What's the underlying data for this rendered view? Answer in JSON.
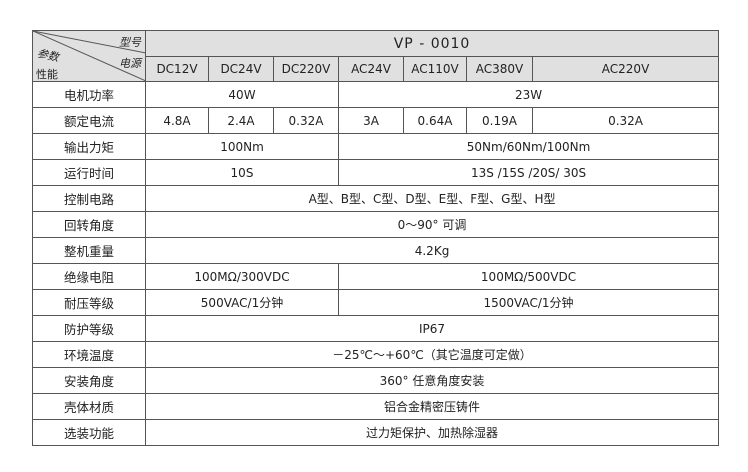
{
  "corner": {
    "model_label": "型号",
    "param_label": "参数",
    "power_label": "电源",
    "perf_label": "性能"
  },
  "model": "VP - 0010",
  "power_sources": [
    "DC12V",
    "DC24V",
    "DC220V",
    "AC24V",
    "AC110V",
    "AC380V",
    "AC220V"
  ],
  "rows": [
    {
      "label": "电机功率",
      "dc": "40W",
      "ac": "23W"
    },
    {
      "label": "额定电流",
      "values": [
        "4.8A",
        "2.4A",
        "0.32A",
        "3A",
        "0.64A",
        "0.19A",
        "0.32A"
      ]
    },
    {
      "label": "输出力矩",
      "dc": "100Nm",
      "ac": "50Nm/60Nm/100Nm"
    },
    {
      "label": "运行时间",
      "dc": "10S",
      "ac": "13S /15S /20S/ 30S"
    },
    {
      "label": "控制电路",
      "all": "A型、B型、C型、D型、E型、F型、G型、H型"
    },
    {
      "label": "回转角度",
      "all": "0～90°  可调"
    },
    {
      "label": "整机重量",
      "all": "4.2Kg"
    },
    {
      "label": "绝缘电阻",
      "dc": "100MΩ/300VDC",
      "ac": "100MΩ/500VDC"
    },
    {
      "label": "耐压等级",
      "dc": "500VAC/1分钟",
      "ac": "1500VAC/1分钟"
    },
    {
      "label": "防护等级",
      "all": "IP67"
    },
    {
      "label": "环境温度",
      "all": "－25℃～+60℃（其它温度可定做）"
    },
    {
      "label": "安装角度",
      "all": "360°  任意角度安装"
    },
    {
      "label": "壳体材质",
      "all": "铝合金精密压铸件"
    },
    {
      "label": "选装功能",
      "all": "过力矩保护、加热除湿器"
    }
  ]
}
